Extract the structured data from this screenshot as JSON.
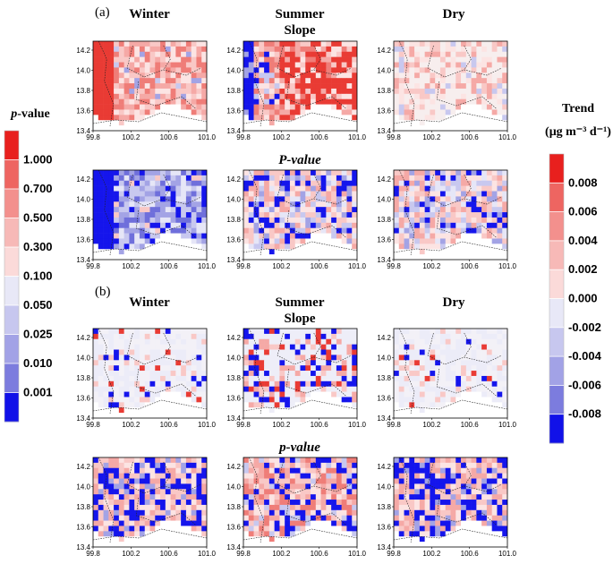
{
  "panels": {
    "a": {
      "letter": "(a)",
      "columns": [
        "Winter",
        "Summer",
        "Dry"
      ],
      "row_labels": {
        "slope": "Slope",
        "pvalue": "P-value"
      }
    },
    "b": {
      "letter": "(b)",
      "columns": [
        "Winter",
        "Summer",
        "Dry"
      ],
      "row_labels": {
        "slope": "Slope",
        "pvalue": "p-value"
      }
    }
  },
  "axes": {
    "x_ticks": [
      "99.8",
      "100.2",
      "100.6",
      "101.0"
    ],
    "y_ticks": [
      "14.2",
      "14.0",
      "13.8",
      "13.6",
      "13.4"
    ]
  },
  "left_colorbar": {
    "title_italic": "p",
    "title_rest": "-value",
    "ticks": [
      "1.000",
      "0.700",
      "0.500",
      "0.300",
      "0.100",
      "0.050",
      "0.025",
      "0.010",
      "0.001"
    ],
    "colors": [
      "#e8201e",
      "#ee6561",
      "#f3908d",
      "#f7b9b7",
      "#fbdad9",
      "#e8e8f7",
      "#c7c7ef",
      "#a2a2e6",
      "#7c7cde",
      "#1111e8"
    ]
  },
  "right_colorbar": {
    "title": "Trend",
    "unit": "(μg m⁻³ d⁻¹)",
    "ticks": [
      "0.008",
      "0.006",
      "0.004",
      "0.002",
      "0.000",
      "-0.002",
      "-0.004",
      "-0.006",
      "-0.008"
    ],
    "colors": [
      "#e8201e",
      "#ee6561",
      "#f3908d",
      "#f7b9b7",
      "#fbdad9",
      "#e8e8f7",
      "#c7c7ef",
      "#a2a2e6",
      "#7c7cde",
      "#1111e8"
    ]
  },
  "maps": [
    {
      "id": "a-slope-winter",
      "style": "a_win_slope"
    },
    {
      "id": "a-slope-summer",
      "style": "a_sum_slope"
    },
    {
      "id": "a-slope-dry",
      "style": "a_dry_slope"
    },
    {
      "id": "a-p-winter",
      "style": "a_win_p"
    },
    {
      "id": "a-p-summer",
      "style": "a_sum_p"
    },
    {
      "id": "a-p-dry",
      "style": "a_dry_p"
    },
    {
      "id": "b-slope-winter",
      "style": "b_slope"
    },
    {
      "id": "b-slope-summer",
      "style": "b_sum_slope"
    },
    {
      "id": "b-slope-dry",
      "style": "b_slope"
    },
    {
      "id": "b-p-winter",
      "style": "b_p"
    },
    {
      "id": "b-p-summer",
      "style": "b_sum_p"
    },
    {
      "id": "b-p-dry",
      "style": "b_p"
    }
  ]
}
